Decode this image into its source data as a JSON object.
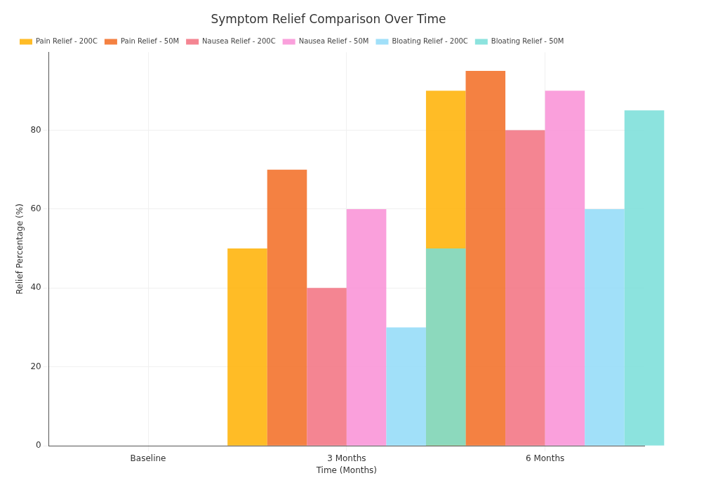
{
  "chart_data": {
    "type": "bar",
    "title": "Symptom Relief Comparison Over Time",
    "xlabel": "Time (Months)",
    "ylabel": "Relief Percentage (%)",
    "categories": [
      "Baseline",
      "3 Months",
      "6 Months"
    ],
    "series": [
      {
        "name": "Pain Relief - 200C",
        "color": "#ffb000",
        "values": [
          0,
          50,
          90
        ]
      },
      {
        "name": "Pain Relief - 50M",
        "color": "#f26b21",
        "values": [
          0,
          70,
          95
        ]
      },
      {
        "name": "Nausea Relief - 200C",
        "color": "#f2707f",
        "values": [
          0,
          40,
          80
        ]
      },
      {
        "name": "Nausea Relief - 50M",
        "color": "#f98fd6",
        "values": [
          0,
          60,
          90
        ]
      },
      {
        "name": "Bloating Relief - 200C",
        "color": "#90daf8",
        "values": [
          0,
          30,
          60
        ]
      },
      {
        "name": "Bloating Relief - 50M",
        "color": "#78ded8",
        "values": [
          0,
          50,
          85
        ]
      }
    ],
    "ylim": [
      0,
      99.75
    ],
    "yticks": [
      0,
      20,
      40,
      60,
      80
    ],
    "grid": true,
    "legend": "top left"
  }
}
